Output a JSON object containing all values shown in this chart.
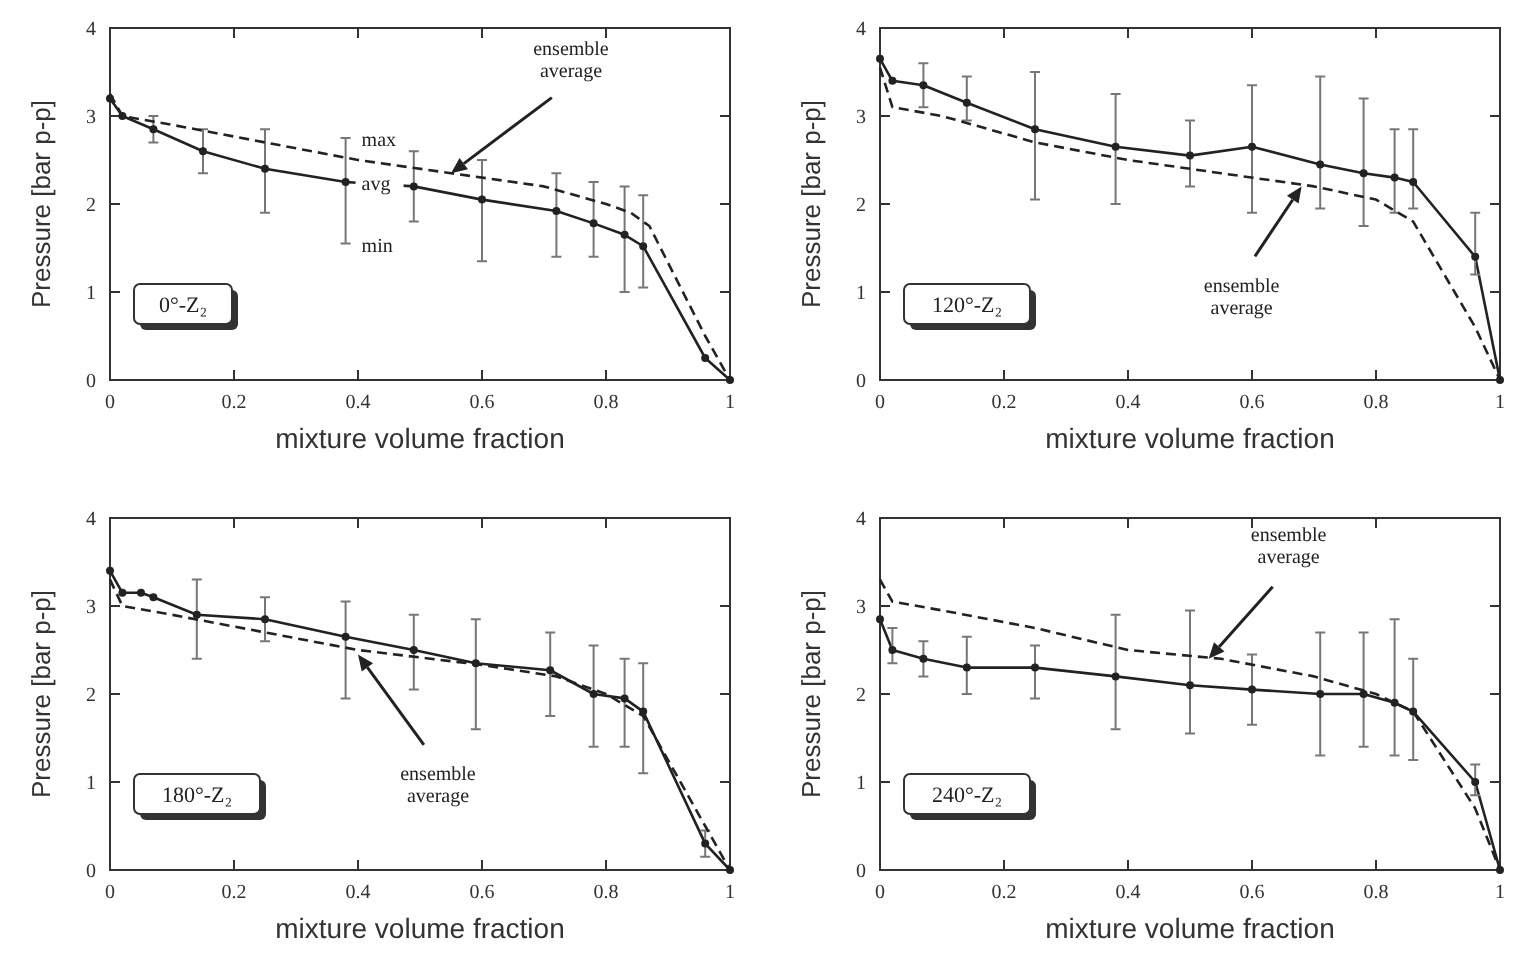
{
  "chart_data": [
    {
      "type": "line",
      "xlabel": "mixture volume fraction",
      "ylabel": "Pressure [bar p-p]",
      "xlim": [
        0,
        1
      ],
      "ylim": [
        0,
        4
      ],
      "xticks": [
        0,
        0.2,
        0.4,
        0.6,
        0.8,
        1
      ],
      "yticks": [
        0,
        1,
        2,
        3,
        4
      ],
      "grid": false,
      "series": [
        {
          "color": "#222222",
          "marker": "circle",
          "line_style": "solid",
          "x": [
            0,
            0.02,
            0.07,
            0.15,
            0.25,
            0.38,
            0.49,
            0.6,
            0.72,
            0.78,
            0.83,
            0.86,
            0.96,
            1
          ],
          "values": [
            3.2,
            3.0,
            2.85,
            2.6,
            2.4,
            2.25,
            2.2,
            2.05,
            1.92,
            1.78,
            1.65,
            1.52,
            0.25,
            0
          ],
          "errors": [
            null,
            null,
            [
              2.7,
              3.0
            ],
            [
              2.35,
              2.85
            ],
            [
              1.9,
              2.85
            ],
            [
              1.55,
              2.75
            ],
            [
              1.8,
              2.6
            ],
            [
              1.35,
              2.5
            ],
            [
              1.4,
              2.35
            ],
            [
              1.4,
              2.25
            ],
            [
              1.0,
              2.2
            ],
            [
              1.05,
              2.1
            ],
            null,
            null
          ]
        },
        {
          "color": "#222222",
          "marker": "none",
          "line_style": "dashed",
          "x": [
            0,
            0.02,
            0.1,
            0.25,
            0.4,
            0.55,
            0.7,
            0.8,
            0.84,
            0.87,
            0.96,
            1
          ],
          "values": [
            3.25,
            3.0,
            2.9,
            2.7,
            2.5,
            2.35,
            2.2,
            2.0,
            1.9,
            1.75,
            0.5,
            0
          ]
        }
      ],
      "annotations": [
        {
          "text": "ensemble average",
          "x": 0.55,
          "y": 2.35
        },
        "0°-Z₂",
        {
          "text": "max",
          "x": 0.38,
          "y": 2.75
        },
        {
          "text": "avg",
          "x": 0.38,
          "y": 2.25
        },
        {
          "text": "min",
          "x": 0.38,
          "y": 1.55
        }
      ]
    },
    {
      "type": "line",
      "xlabel": "mixture volume fraction",
      "ylabel": "Pressure [bar p-p]",
      "xlim": [
        0,
        1
      ],
      "ylim": [
        0,
        4
      ],
      "xticks": [
        0,
        0.2,
        0.4,
        0.6,
        0.8,
        1
      ],
      "yticks": [
        0,
        1,
        2,
        3,
        4
      ],
      "grid": false,
      "series": [
        {
          "color": "#222222",
          "marker": "circle",
          "line_style": "solid",
          "x": [
            0,
            0.02,
            0.07,
            0.14,
            0.25,
            0.38,
            0.5,
            0.6,
            0.71,
            0.78,
            0.83,
            0.86,
            0.96,
            1
          ],
          "values": [
            3.65,
            3.4,
            3.35,
            3.15,
            2.85,
            2.65,
            2.55,
            2.65,
            2.45,
            2.35,
            2.3,
            2.25,
            1.4,
            0
          ],
          "errors": [
            null,
            null,
            [
              3.1,
              3.6
            ],
            [
              2.95,
              3.45
            ],
            [
              2.05,
              3.5
            ],
            [
              2.0,
              3.25
            ],
            [
              2.2,
              2.95
            ],
            [
              1.9,
              3.35
            ],
            [
              1.95,
              3.45
            ],
            [
              1.75,
              3.2
            ],
            [
              1.9,
              2.85
            ],
            [
              1.95,
              2.85
            ],
            [
              1.2,
              1.9
            ],
            null
          ]
        },
        {
          "color": "#222222",
          "marker": "none",
          "line_style": "dashed",
          "x": [
            0,
            0.02,
            0.1,
            0.25,
            0.4,
            0.55,
            0.7,
            0.8,
            0.86,
            0.96,
            1
          ],
          "values": [
            3.55,
            3.1,
            3.0,
            2.7,
            2.5,
            2.35,
            2.2,
            2.05,
            1.8,
            0.6,
            0
          ]
        }
      ],
      "annotations": [
        {
          "text": "ensemble average",
          "x": 0.68,
          "y": 2.2
        },
        "120°-Z₂"
      ]
    },
    {
      "type": "line",
      "xlabel": "mixture volume fraction",
      "ylabel": "Pressure [bar p-p]",
      "xlim": [
        0,
        1
      ],
      "ylim": [
        0,
        4
      ],
      "xticks": [
        0,
        0.2,
        0.4,
        0.6,
        0.8,
        1
      ],
      "yticks": [
        0,
        1,
        2,
        3,
        4
      ],
      "grid": false,
      "series": [
        {
          "color": "#222222",
          "marker": "circle",
          "line_style": "solid",
          "x": [
            0,
            0.02,
            0.05,
            0.07,
            0.14,
            0.25,
            0.38,
            0.49,
            0.59,
            0.71,
            0.78,
            0.83,
            0.86,
            0.96,
            1
          ],
          "values": [
            3.4,
            3.15,
            3.15,
            3.1,
            2.9,
            2.85,
            2.65,
            2.5,
            2.35,
            2.27,
            2.0,
            1.95,
            1.8,
            0.3,
            0
          ],
          "errors": [
            null,
            null,
            null,
            null,
            [
              2.4,
              3.3
            ],
            [
              2.6,
              3.1
            ],
            [
              1.95,
              3.05
            ],
            [
              2.05,
              2.9
            ],
            [
              1.6,
              2.85
            ],
            [
              1.75,
              2.7
            ],
            [
              1.4,
              2.55
            ],
            [
              1.4,
              2.4
            ],
            [
              1.1,
              2.35
            ],
            [
              0.15,
              0.45
            ],
            null
          ]
        },
        {
          "color": "#222222",
          "marker": "none",
          "line_style": "dashed",
          "x": [
            0,
            0.02,
            0.1,
            0.25,
            0.4,
            0.6,
            0.72,
            0.8,
            0.86,
            0.96,
            1
          ],
          "values": [
            3.3,
            3.0,
            2.9,
            2.7,
            2.5,
            2.33,
            2.2,
            2.0,
            1.75,
            0.5,
            0
          ]
        }
      ],
      "annotations": [
        {
          "text": "ensemble average",
          "x": 0.4,
          "y": 2.45
        },
        "180°-Z₂"
      ]
    },
    {
      "type": "line",
      "xlabel": "mixture volume fraction",
      "ylabel": "Pressure [bar p-p]",
      "xlim": [
        0,
        1
      ],
      "ylim": [
        0,
        4
      ],
      "xticks": [
        0,
        0.2,
        0.4,
        0.6,
        0.8,
        1
      ],
      "yticks": [
        0,
        1,
        2,
        3,
        4
      ],
      "grid": false,
      "series": [
        {
          "color": "#222222",
          "marker": "circle",
          "line_style": "solid",
          "x": [
            0,
            0.02,
            0.07,
            0.14,
            0.25,
            0.38,
            0.5,
            0.6,
            0.71,
            0.78,
            0.83,
            0.86,
            0.96,
            1
          ],
          "values": [
            2.85,
            2.5,
            2.4,
            2.3,
            2.3,
            2.2,
            2.1,
            2.05,
            2.0,
            2.0,
            1.9,
            1.8,
            1.0,
            0
          ],
          "errors": [
            null,
            [
              2.35,
              2.75
            ],
            [
              2.2,
              2.6
            ],
            [
              2.0,
              2.65
            ],
            [
              1.95,
              2.55
            ],
            [
              1.6,
              2.9
            ],
            [
              1.55,
              2.95
            ],
            [
              1.65,
              2.45
            ],
            [
              1.3,
              2.7
            ],
            [
              1.4,
              2.7
            ],
            [
              1.3,
              2.85
            ],
            [
              1.25,
              2.4
            ],
            [
              0.85,
              1.2
            ],
            null
          ]
        },
        {
          "color": "#222222",
          "marker": "none",
          "line_style": "dashed",
          "x": [
            0,
            0.02,
            0.1,
            0.25,
            0.4,
            0.55,
            0.7,
            0.8,
            0.86,
            0.96,
            1
          ],
          "values": [
            3.3,
            3.05,
            2.95,
            2.75,
            2.5,
            2.4,
            2.2,
            2.0,
            1.8,
            0.7,
            0
          ]
        }
      ],
      "annotations": [
        {
          "text": "ensemble average",
          "x": 0.53,
          "y": 2.4
        },
        "240°-Z₂"
      ]
    }
  ]
}
